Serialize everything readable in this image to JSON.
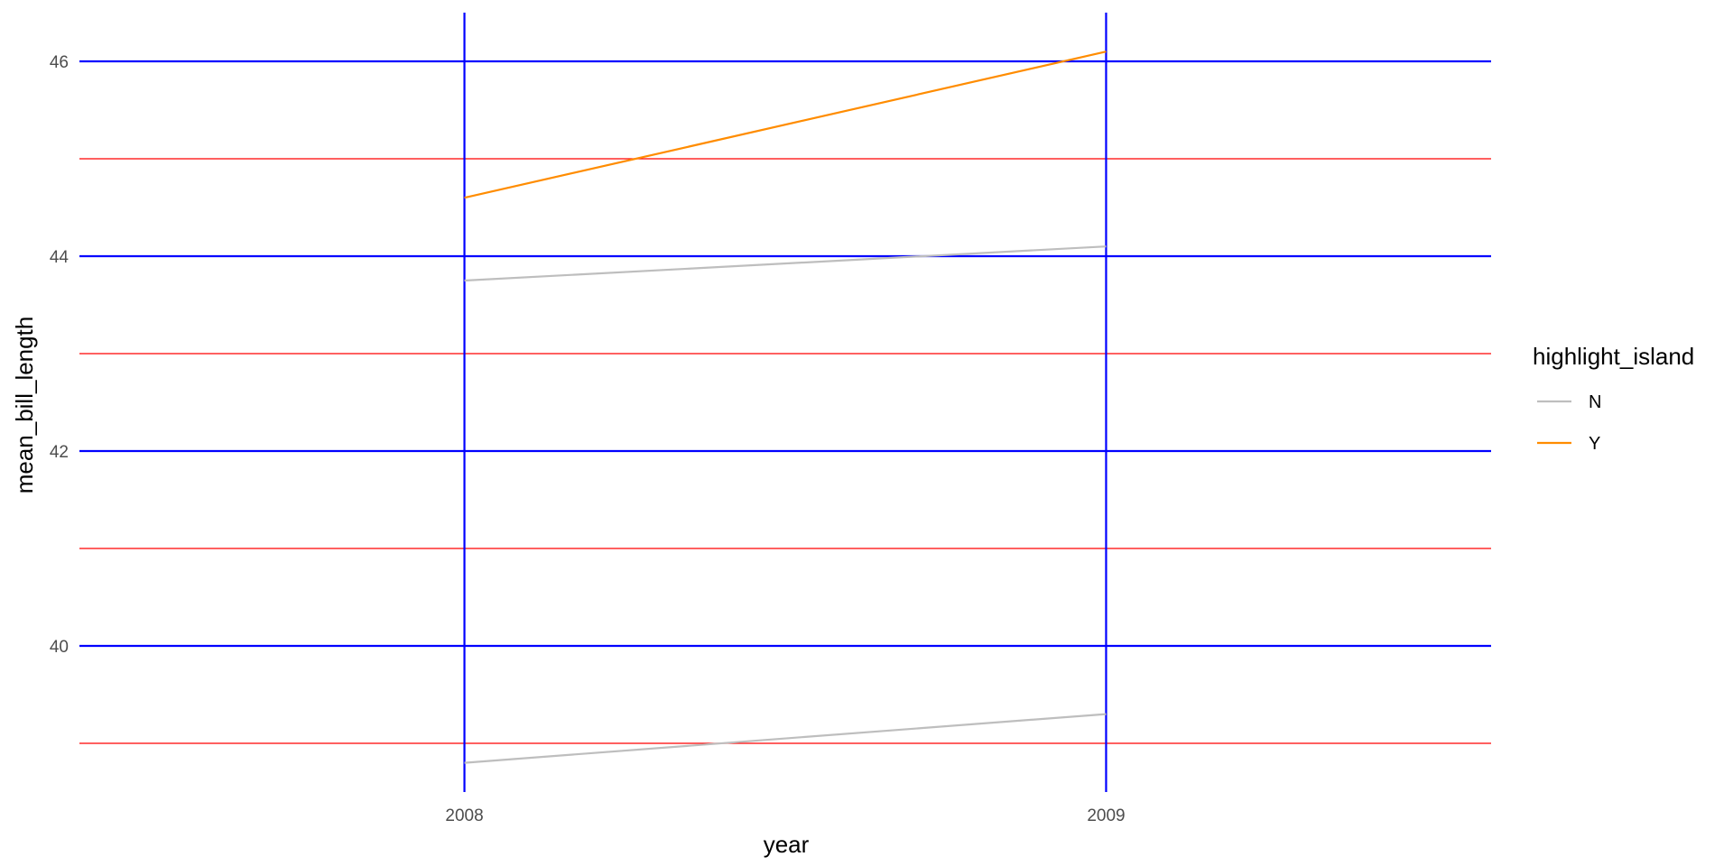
{
  "chart_data": {
    "type": "line",
    "title": "",
    "xlabel": "year",
    "ylabel": "mean_bill_length",
    "x": [
      2008,
      2009
    ],
    "x_tick_labels": [
      "2008",
      "2009"
    ],
    "xlim": [
      2007.4,
      2009.6
    ],
    "y_ticks": [
      40,
      42,
      44,
      46
    ],
    "y_tick_labels": [
      "40",
      "42",
      "44",
      "46"
    ],
    "y_minor_ticks": [
      39,
      41,
      43,
      45
    ],
    "ylim": [
      38.5,
      46.5
    ],
    "grid": true,
    "major_grid_color": "#0000ff",
    "minor_grid_color": "#ff0000",
    "legend": {
      "title": "highlight_island",
      "position": "right",
      "entries": [
        {
          "label": "N",
          "color": "#bebebe"
        },
        {
          "label": "Y",
          "color": "#ff8c00"
        }
      ]
    },
    "series": [
      {
        "group": "N",
        "color": "#bebebe",
        "values": [
          38.8,
          39.3
        ]
      },
      {
        "group": "N",
        "color": "#bebebe",
        "values": [
          43.75,
          44.1
        ]
      },
      {
        "group": "Y",
        "color": "#ff8c00",
        "values": [
          44.6,
          46.1
        ]
      }
    ]
  }
}
